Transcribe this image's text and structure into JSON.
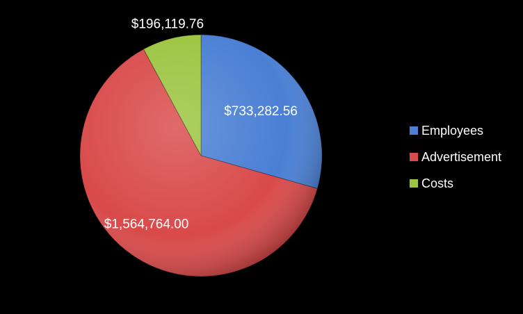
{
  "chart_data": {
    "type": "pie",
    "title": "",
    "categories": [
      "Employees",
      "Advertisement",
      "Costs"
    ],
    "values": [
      733282.56,
      1564764.0,
      196119.76
    ],
    "value_labels": [
      "$733,282.56",
      "$1,564,764.00",
      "$196,119.76"
    ],
    "colors": [
      "#4a7fd4",
      "#d94a4a",
      "#9cc43f"
    ],
    "start_angle": "12 o'clock",
    "direction": "clockwise",
    "legend_position": "right"
  }
}
